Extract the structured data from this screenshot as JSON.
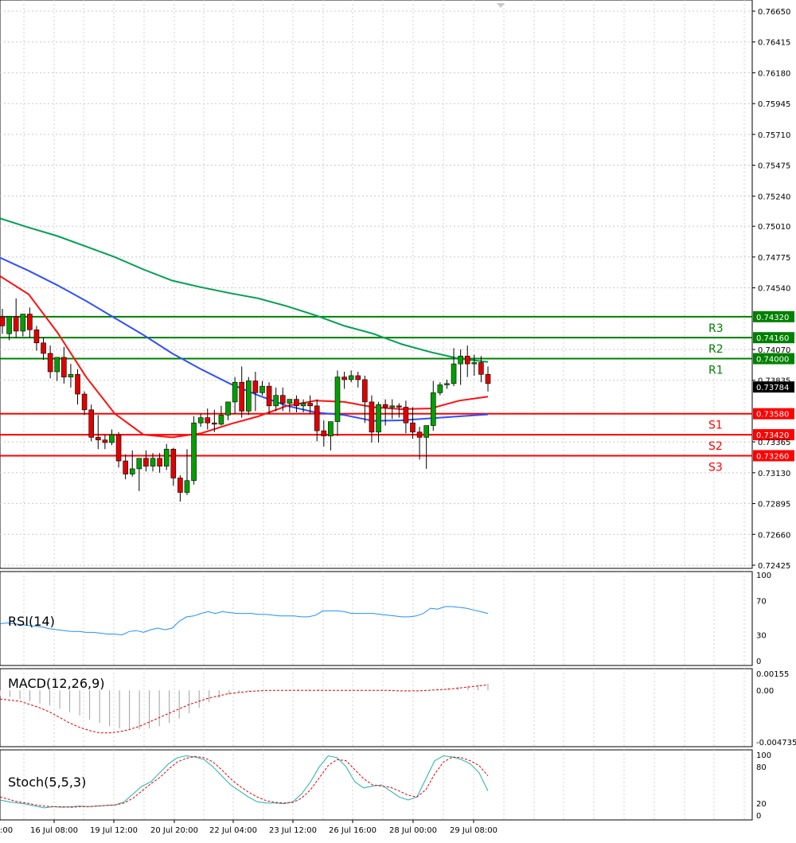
{
  "chart_data": [
    {
      "type": "candlestick",
      "ylim": [
        0.72425,
        0.7665
      ],
      "y_ticks": [
        "0.76650",
        "0.76415",
        "0.76180",
        "0.75945",
        "0.75710",
        "0.75475",
        "0.75240",
        "0.75010",
        "0.74775",
        "0.74540",
        "0.74070",
        "0.73835",
        "0.73365",
        "0.73130",
        "0.72895",
        "0.72660",
        "0.72425"
      ],
      "x_ticks": [
        "16 Jul 08:00",
        "19 Jul 12:00",
        "20 Jul 20:00",
        "22 Jul 04:00",
        "23 Jul 12:00",
        "26 Jul 16:00",
        "28 Jul 00:00",
        "29 Jul 08:00"
      ],
      "x_tick_partial": ":00",
      "current_price": "0.73784",
      "levels": [
        {
          "name": "R3",
          "value": "0.74320",
          "color": "#008000"
        },
        {
          "name": "R2",
          "value": "0.74160",
          "color": "#008000"
        },
        {
          "name": "R1",
          "value": "0.74000",
          "color": "#008000"
        },
        {
          "name": "S1",
          "value": "0.73580",
          "color": "#ff0000"
        },
        {
          "name": "S2",
          "value": "0.73420",
          "color": "#ff0000"
        },
        {
          "name": "S3",
          "value": "0.73260",
          "color": "#ff0000"
        }
      ],
      "candles": [
        [
          0.7432,
          0.7438,
          0.7425,
          0.7419
        ],
        [
          0.7419,
          0.7428,
          0.7432,
          0.7414
        ],
        [
          0.7432,
          0.7446,
          0.7421,
          0.7416
        ],
        [
          0.7421,
          0.7434,
          0.7434,
          0.7417
        ],
        [
          0.7434,
          0.7439,
          0.7422,
          0.7416
        ],
        [
          0.7422,
          0.7425,
          0.7412,
          0.7406
        ],
        [
          0.7412,
          0.7416,
          0.7404,
          0.7399
        ],
        [
          0.7404,
          0.741,
          0.739,
          0.7385
        ],
        [
          0.739,
          0.7399,
          0.7401,
          0.7383
        ],
        [
          0.7401,
          0.7409,
          0.7386,
          0.7381
        ],
        [
          0.7386,
          0.7396,
          0.7388,
          0.7378
        ],
        [
          0.7388,
          0.7392,
          0.7373,
          0.7365
        ],
        [
          0.7373,
          0.7375,
          0.7361,
          0.7357
        ],
        [
          0.7361,
          0.7365,
          0.734,
          0.7337
        ],
        [
          0.734,
          0.7357,
          0.7338,
          0.7331
        ],
        [
          0.7338,
          0.7342,
          0.7336,
          0.7331
        ],
        [
          0.7336,
          0.7346,
          0.7342,
          0.7334
        ],
        [
          0.7342,
          0.7344,
          0.7322,
          0.7317
        ],
        [
          0.7322,
          0.7327,
          0.7312,
          0.7308
        ],
        [
          0.7312,
          0.733,
          0.7316,
          0.731
        ],
        [
          0.7316,
          0.7318,
          0.7324,
          0.7299
        ],
        [
          0.7324,
          0.733,
          0.7318,
          0.7314
        ],
        [
          0.7318,
          0.7328,
          0.7324,
          0.7314
        ],
        [
          0.7324,
          0.7328,
          0.7318,
          0.7313
        ],
        [
          0.7318,
          0.7335,
          0.7331,
          0.7315
        ],
        [
          0.7331,
          0.7332,
          0.7309,
          0.7303
        ],
        [
          0.7309,
          0.7311,
          0.7298,
          0.7291
        ],
        [
          0.7298,
          0.7331,
          0.7307,
          0.7296
        ],
        [
          0.7307,
          0.7356,
          0.7351,
          0.7304
        ],
        [
          0.7351,
          0.7358,
          0.7355,
          0.7348
        ],
        [
          0.7355,
          0.7362,
          0.7351,
          0.7346
        ],
        [
          0.7351,
          0.7361,
          0.735,
          0.7344
        ],
        [
          0.735,
          0.7364,
          0.7357,
          0.7349
        ],
        [
          0.7357,
          0.7366,
          0.7367,
          0.7353
        ],
        [
          0.7367,
          0.7386,
          0.7382,
          0.7358
        ],
        [
          0.7382,
          0.7394,
          0.736,
          0.7355
        ],
        [
          0.736,
          0.7386,
          0.7383,
          0.7357
        ],
        [
          0.7383,
          0.739,
          0.7374,
          0.736
        ],
        [
          0.7374,
          0.7383,
          0.7379,
          0.7372
        ],
        [
          0.7379,
          0.7382,
          0.7364,
          0.7358
        ],
        [
          0.7364,
          0.7378,
          0.7372,
          0.736
        ],
        [
          0.7372,
          0.7378,
          0.7366,
          0.736
        ],
        [
          0.7366,
          0.7369,
          0.7369,
          0.7359
        ],
        [
          0.7369,
          0.7372,
          0.7364,
          0.7359
        ],
        [
          0.7364,
          0.7369,
          0.7366,
          0.7359
        ],
        [
          0.7366,
          0.7372,
          0.7364,
          0.7358
        ],
        [
          0.7364,
          0.7369,
          0.7345,
          0.7337
        ],
        [
          0.7345,
          0.7353,
          0.7341,
          0.7333
        ],
        [
          0.7341,
          0.7349,
          0.7352,
          0.733
        ],
        [
          0.7352,
          0.7391,
          0.7386,
          0.7341
        ],
        [
          0.7386,
          0.739,
          0.7384,
          0.7377
        ],
        [
          0.7384,
          0.7391,
          0.7387,
          0.7382
        ],
        [
          0.7387,
          0.739,
          0.7384,
          0.7378
        ],
        [
          0.7384,
          0.7387,
          0.7367,
          0.7351
        ],
        [
          0.7367,
          0.7372,
          0.7344,
          0.7336
        ],
        [
          0.7344,
          0.7367,
          0.7365,
          0.7336
        ],
        [
          0.7365,
          0.7369,
          0.7363,
          0.7349
        ],
        [
          0.7363,
          0.7369,
          0.7364,
          0.7354
        ],
        [
          0.7364,
          0.7366,
          0.7363,
          0.7355
        ],
        [
          0.7363,
          0.7368,
          0.7351,
          0.7343
        ],
        [
          0.7351,
          0.7363,
          0.7344,
          0.7339
        ],
        [
          0.7344,
          0.7348,
          0.734,
          0.7323
        ],
        [
          0.734,
          0.7347,
          0.7349,
          0.7316
        ],
        [
          0.7349,
          0.7383,
          0.7374,
          0.7345
        ],
        [
          0.7374,
          0.7382,
          0.738,
          0.7372
        ],
        [
          0.738,
          0.7384,
          0.7381,
          0.7377
        ],
        [
          0.7381,
          0.7408,
          0.7396,
          0.7379
        ],
        [
          0.7396,
          0.7407,
          0.7402,
          0.738
        ],
        [
          0.7402,
          0.741,
          0.7396,
          0.7386
        ],
        [
          0.7396,
          0.7403,
          0.7397,
          0.7387
        ],
        [
          0.7397,
          0.7402,
          0.7388,
          0.7382
        ],
        [
          0.7388,
          0.7394,
          0.7381,
          0.7375
        ]
      ],
      "moving_averages": [
        {
          "color": "#00a050",
          "values": [
            0.7507,
            0.75,
            0.74935,
            0.74855,
            0.74775,
            0.7468,
            0.74595,
            0.74545,
            0.745,
            0.7446,
            0.744,
            0.7433,
            0.7425,
            0.7419,
            0.7411,
            0.7405,
            0.74,
            0.73975
          ]
        },
        {
          "color": "#3050ff",
          "values": [
            0.7477,
            0.7467,
            0.7456,
            0.7444,
            0.7431,
            0.7418,
            0.7404,
            0.7392,
            0.7381,
            0.7372,
            0.7364,
            0.7359,
            0.7357,
            0.73525,
            0.7353,
            0.73545,
            0.7356,
            0.73575
          ]
        },
        {
          "color": "#ff1010",
          "values": [
            0.7463,
            0.7449,
            0.742,
            0.7386,
            0.7358,
            0.7342,
            0.734,
            0.7343,
            0.735,
            0.7356,
            0.7364,
            0.7368,
            0.7367,
            0.7363,
            0.73615,
            0.7362,
            0.7368,
            0.7371
          ]
        }
      ]
    },
    {
      "type": "line",
      "name": "RSI(14)",
      "ylim": [
        0,
        100
      ],
      "y_ticks": [
        "100",
        "70",
        "30",
        "0"
      ],
      "values": [
        43,
        44,
        43,
        42,
        41,
        40,
        39,
        37,
        36,
        35,
        34,
        34,
        33,
        33,
        32,
        31,
        31,
        30,
        34,
        35,
        33,
        36,
        38,
        36,
        38,
        46,
        51,
        52,
        55,
        57,
        55,
        57,
        56,
        55,
        55,
        55,
        54,
        54,
        53,
        52,
        52,
        52,
        51,
        51,
        53,
        58,
        58,
        58,
        57,
        55,
        55,
        55,
        55,
        54,
        53,
        52,
        51,
        51,
        52,
        55,
        61,
        60,
        63,
        63,
        62,
        61,
        59,
        57,
        55
      ]
    },
    {
      "type": "bar",
      "name": "MACD(12,26,9)",
      "ylim": [
        -0.004735,
        0.00155
      ],
      "y_ticks": [
        "0.00155",
        "0.00",
        "-0.004735"
      ],
      "values": [
        -0.0005,
        -0.0006,
        -0.0008,
        -0.001,
        -0.0012,
        -0.0014,
        -0.0017,
        -0.002,
        -0.0023,
        -0.0027,
        -0.003,
        -0.0033,
        -0.0035,
        -0.0036,
        -0.0036,
        -0.0035,
        -0.0033,
        -0.003,
        -0.0026,
        -0.0021,
        -0.0016,
        -0.0011,
        -0.0007,
        -0.0004,
        -0.0002,
        -0.0001,
        -5e-05,
        0,
        0,
        5e-05,
        0.0001,
        0.0001,
        0.0001,
        5e-05,
        0,
        0,
        0,
        0,
        0,
        0,
        -5e-05,
        -0.0001,
        -5e-05,
        0,
        0.0001,
        0.0002,
        0.0003,
        0.0004,
        0.0005,
        0.0006
      ],
      "signal": [
        -0.0008,
        -0.0009,
        -0.001,
        -0.0013,
        -0.0016,
        -0.002,
        -0.0025,
        -0.003,
        -0.0034,
        -0.0037,
        -0.0039,
        -0.0039,
        -0.0038,
        -0.0036,
        -0.0033,
        -0.0029,
        -0.0025,
        -0.0021,
        -0.0017,
        -0.0013,
        -0.001,
        -0.0007,
        -0.0005,
        -0.0003,
        -0.0002,
        -0.0001,
        -5e-05,
        0,
        0,
        0,
        0,
        0,
        0,
        0,
        0,
        0,
        0,
        0,
        0,
        0,
        -5e-05,
        -5e-05,
        -5e-05,
        0,
        5e-05,
        0.0001,
        0.0002,
        0.0003,
        0.0004,
        0.0005
      ]
    },
    {
      "type": "line",
      "name": "Stoch(5,5,3)",
      "ylim": [
        0,
        100
      ],
      "y_ticks": [
        "100",
        "80",
        "20",
        "0"
      ],
      "main": [
        25,
        22,
        20,
        18,
        15,
        12,
        14,
        13,
        14,
        15,
        14,
        15,
        16,
        17,
        22,
        35,
        48,
        55,
        70,
        85,
        95,
        98,
        96,
        92,
        80,
        65,
        50,
        40,
        30,
        22,
        20,
        20,
        19,
        22,
        35,
        55,
        80,
        98,
        95,
        80,
        55,
        45,
        48,
        50,
        40,
        30,
        25,
        30,
        60,
        90,
        98,
        96,
        92,
        85,
        70,
        40
      ],
      "signal": [
        30,
        26,
        22,
        20,
        17,
        15,
        14,
        14,
        13,
        14,
        14,
        15,
        16,
        17,
        20,
        28,
        40,
        52,
        62,
        76,
        88,
        94,
        97,
        95,
        88,
        75,
        60,
        48,
        38,
        30,
        24,
        21,
        20,
        21,
        28,
        42,
        62,
        82,
        92,
        90,
        75,
        60,
        50,
        48,
        46,
        40,
        33,
        30,
        42,
        68,
        88,
        96,
        95,
        90,
        82,
        65
      ]
    }
  ]
}
